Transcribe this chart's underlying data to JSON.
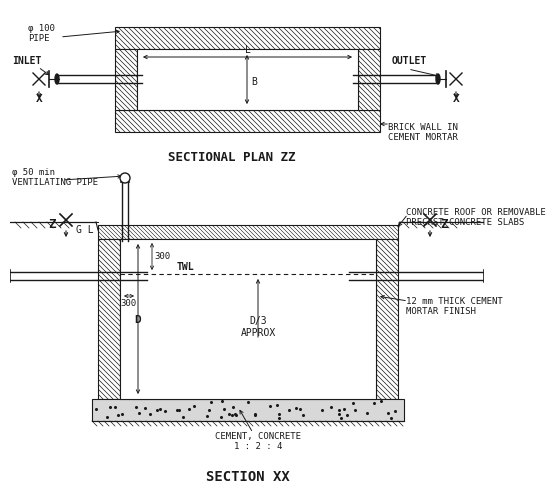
{
  "bg_color": "#ffffff",
  "line_color": "#1a1a1a",
  "title1": "SECTIONAL PLAN ZZ",
  "title2": "SECTION XX",
  "labels": {
    "phi100": "φ 100\nPIPE",
    "inlet": "INLET",
    "outlet": "OUTLET",
    "L": "L",
    "B": "B",
    "brick_wall": "BRICK WALL IN\nCEMENT MORTAR",
    "x_left": "X",
    "x_right": "X",
    "phi50": "φ 50 min\nVENTILATING PIPE",
    "gl": "G L",
    "z_left": "Z",
    "z_right": "Z",
    "300_top": "300",
    "300_side": "300",
    "twl": "TWL",
    "d3": "D/3\nAPPROX",
    "D": "D",
    "concrete_roof": "CONCRETE ROOF OR REMOVABLE\nPRECAST CONCRETE SLABS",
    "cement_mortar": "12 mm THICK CEMENT\nMORTAR FINISH",
    "cement_concrete": "CEMENT, CONCRETE\n1 : 2 : 4"
  }
}
